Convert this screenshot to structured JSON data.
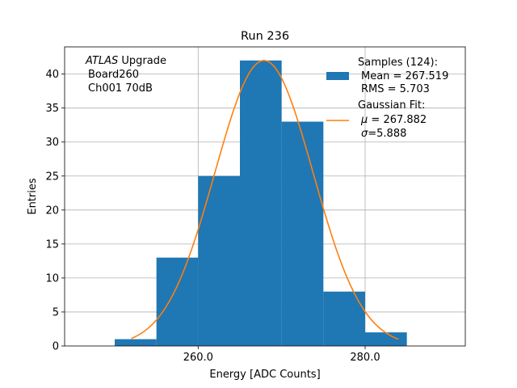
{
  "chart_data": {
    "type": "bar",
    "title": "Run 236",
    "xlabel": "Energy [ADC Counts]",
    "ylabel": "Entries",
    "xlim": [
      244,
      292
    ],
    "ylim": [
      0,
      44
    ],
    "grid": true,
    "x_ticks": [
      260,
      280
    ],
    "x_tick_labels": [
      "260.0",
      "280.0"
    ],
    "y_ticks": [
      0,
      5,
      10,
      15,
      20,
      25,
      30,
      35,
      40
    ],
    "annotation": {
      "line1_italic": "ATLAS",
      "line1_rest": " Upgrade",
      "line2": "Board260",
      "line3": "Ch001 70dB"
    },
    "histogram": {
      "name": "Samples (124)",
      "color": "#1f77b4",
      "bin_edges": [
        250,
        255,
        260,
        265,
        270,
        275,
        280,
        285
      ],
      "counts": [
        1,
        13,
        25,
        42,
        33,
        8,
        2
      ],
      "mean": "267.519",
      "rms": "5.703"
    },
    "fit": {
      "name": "Gaussian Fit",
      "color": "#ff7f0e",
      "mu": 267.882,
      "sigma": 5.888,
      "amplitude": 42,
      "x_range": [
        252,
        284
      ]
    },
    "legend": {
      "location": "top-right",
      "samples_title": "Samples (124):",
      "samples_mean": "Mean = 267.519",
      "samples_rms": "RMS = 5.703",
      "fit_title": "Gaussian Fit:",
      "fit_mu_symbol": "μ",
      "fit_mu_value": " = 267.882",
      "fit_sigma_symbol": "σ",
      "fit_sigma_value": "=5.888"
    }
  }
}
